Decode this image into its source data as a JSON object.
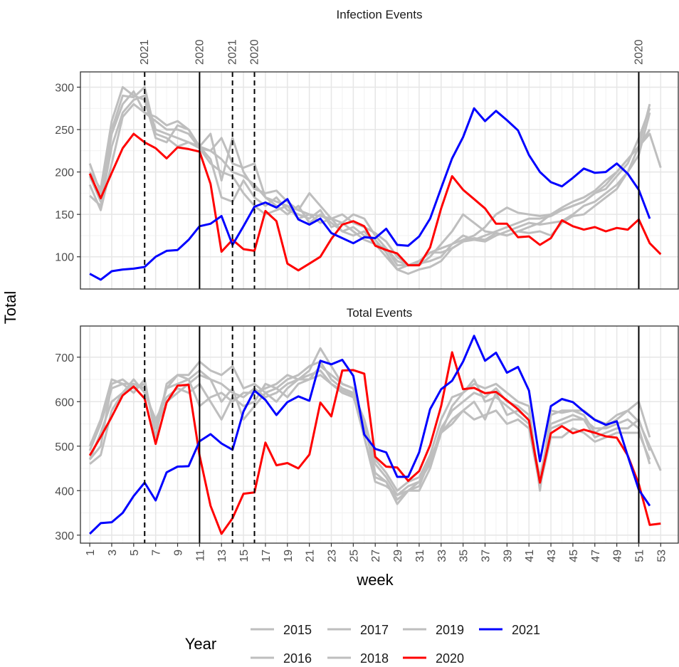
{
  "y_label": "Total",
  "x_label": "week",
  "legend_title": "Year",
  "xlim": [
    0.15,
    54.6
  ],
  "xticks": [
    1,
    3,
    5,
    7,
    9,
    11,
    13,
    15,
    17,
    19,
    21,
    23,
    25,
    27,
    29,
    31,
    33,
    35,
    37,
    39,
    41,
    43,
    45,
    47,
    49,
    51,
    53
  ],
  "reference_lines": [
    {
      "x": 6,
      "label": "2021",
      "style": "dashed"
    },
    {
      "x": 11,
      "label": "2020",
      "style": "solid"
    },
    {
      "x": 14,
      "label": "2021",
      "style": "dashed"
    },
    {
      "x": 16,
      "label": "2020",
      "style": "dashed"
    },
    {
      "x": 51,
      "label": "2020",
      "style": "solid"
    }
  ],
  "chart_data": [
    {
      "type": "line",
      "title": "Infection Events",
      "x": [
        1,
        2,
        3,
        4,
        5,
        6,
        7,
        8,
        9,
        10,
        11,
        12,
        13,
        14,
        15,
        16,
        17,
        18,
        19,
        20,
        21,
        22,
        23,
        24,
        25,
        26,
        27,
        28,
        29,
        30,
        31,
        32,
        33,
        34,
        35,
        36,
        37,
        38,
        39,
        40,
        41,
        42,
        43,
        44,
        45,
        46,
        47,
        48,
        49,
        50,
        51,
        52,
        53
      ],
      "ylim": [
        62,
        318
      ],
      "yticks": [
        100,
        150,
        200,
        250,
        300
      ],
      "series": [
        {
          "name": "2015",
          "color": "#bebebe",
          "values": [
            172,
            160,
            230,
            270,
            285,
            290,
            250,
            245,
            240,
            235,
            230,
            225,
            215,
            200,
            195,
            185,
            170,
            165,
            160,
            155,
            150,
            148,
            145,
            140,
            150,
            145,
            125,
            110,
            95,
            90,
            90,
            100,
            115,
            130,
            150,
            140,
            130,
            128,
            125,
            130,
            135,
            140,
            150,
            155,
            160,
            165,
            175,
            185,
            200,
            215,
            230,
            245,
            205
          ]
        },
        {
          "name": "2016",
          "color": "#bebebe",
          "values": [
            185,
            155,
            210,
            265,
            280,
            270,
            265,
            255,
            260,
            250,
            230,
            245,
            190,
            240,
            200,
            180,
            175,
            178,
            165,
            155,
            175,
            160,
            145,
            150,
            140,
            135,
            128,
            118,
            100,
            90,
            95,
            105,
            110,
            115,
            120,
            125,
            135,
            150,
            158,
            152,
            150,
            148,
            150,
            158,
            165,
            170,
            178,
            190,
            200,
            215,
            230,
            280,
            null
          ]
        },
        {
          "name": "2017",
          "color": "#bebebe",
          "values": [
            210,
            175,
            250,
            290,
            288,
            300,
            245,
            240,
            230,
            235,
            228,
            225,
            240,
            210,
            205,
            210,
            170,
            160,
            150,
            160,
            140,
            150,
            140,
            130,
            135,
            125,
            120,
            105,
            85,
            80,
            85,
            88,
            95,
            110,
            118,
            120,
            125,
            130,
            135,
            140,
            145,
            145,
            148,
            155,
            160,
            165,
            175,
            180,
            195,
            210,
            240,
            275,
            null
          ]
        },
        {
          "name": "2018",
          "color": "#bebebe",
          "values": [
            200,
            180,
            260,
            300,
            290,
            285,
            240,
            235,
            255,
            250,
            230,
            215,
            170,
            165,
            190,
            170,
            160,
            170,
            155,
            150,
            145,
            155,
            135,
            140,
            130,
            120,
            115,
            100,
            85,
            90,
            92,
            95,
            100,
            115,
            125,
            120,
            118,
            125,
            130,
            135,
            140,
            138,
            140,
            142,
            150,
            160,
            165,
            175,
            185,
            200,
            220,
            270,
            null
          ]
        },
        {
          "name": "2019",
          "color": "#bebebe",
          "values": [
            195,
            165,
            245,
            280,
            295,
            270,
            260,
            250,
            250,
            245,
            228,
            210,
            200,
            195,
            175,
            160,
            150,
            155,
            160,
            145,
            150,
            140,
            145,
            130,
            125,
            130,
            115,
            110,
            90,
            90,
            95,
            105,
            105,
            110,
            118,
            122,
            120,
            128,
            125,
            130,
            128,
            130,
            125,
            140,
            148,
            150,
            160,
            170,
            180,
            200,
            230,
            250,
            null
          ]
        },
        {
          "name": "2020",
          "color": "#ff0000",
          "values": [
            198,
            169,
            199,
            228,
            245,
            235,
            228,
            216,
            229,
            227,
            224,
            186,
            106,
            120,
            109,
            107,
            154,
            142,
            92,
            84,
            92,
            100,
            121,
            138,
            142,
            136,
            113,
            108,
            104,
            90,
            90,
            111,
            157,
            195,
            179,
            168,
            157,
            139,
            139,
            123,
            124,
            114,
            122,
            143,
            136,
            132,
            135,
            130,
            134,
            132,
            144,
            116,
            103
          ]
        },
        {
          "name": "2021",
          "color": "#0000ff",
          "values": [
            80,
            73,
            83,
            85,
            86,
            88,
            100,
            107,
            108,
            120,
            136,
            139,
            148,
            114,
            136,
            159,
            164,
            158,
            168,
            144,
            138,
            145,
            128,
            122,
            116,
            123,
            122,
            133,
            114,
            113,
            124,
            145,
            181,
            216,
            241,
            275,
            260,
            272,
            261,
            249,
            220,
            200,
            188,
            183,
            193,
            204,
            199,
            200,
            210,
            198,
            179,
            145,
            null
          ]
        }
      ]
    },
    {
      "type": "line",
      "title": "Total Events",
      "x": [
        1,
        2,
        3,
        4,
        5,
        6,
        7,
        8,
        9,
        10,
        11,
        12,
        13,
        14,
        15,
        16,
        17,
        18,
        19,
        20,
        21,
        22,
        23,
        24,
        25,
        26,
        27,
        28,
        29,
        30,
        31,
        32,
        33,
        34,
        35,
        36,
        37,
        38,
        39,
        40,
        41,
        42,
        43,
        44,
        45,
        46,
        47,
        48,
        49,
        50,
        51,
        52,
        53
      ],
      "ylim": [
        282,
        770
      ],
      "yticks": [
        300,
        400,
        500,
        600,
        700
      ],
      "series": [
        {
          "color": "#bebebe",
          "values": [
            470,
            500,
            640,
            650,
            630,
            640,
            540,
            600,
            620,
            640,
            660,
            650,
            600,
            630,
            560,
            590,
            620,
            630,
            610,
            640,
            650,
            660,
            640,
            625,
            615,
            520,
            430,
            420,
            380,
            400,
            420,
            460,
            540,
            580,
            600,
            620,
            610,
            630,
            600,
            590,
            570,
            410,
            570,
            580,
            580,
            570,
            530,
            545,
            560,
            580,
            555,
            500,
            445
          ]
        },
        {
          "color": "#bebebe",
          "values": [
            500,
            560,
            650,
            640,
            620,
            650,
            520,
            640,
            660,
            660,
            690,
            670,
            660,
            680,
            630,
            640,
            620,
            600,
            630,
            650,
            670,
            720,
            680,
            640,
            630,
            550,
            440,
            420,
            370,
            400,
            410,
            470,
            530,
            590,
            620,
            640,
            630,
            640,
            620,
            600,
            590,
            400,
            580,
            575,
            580,
            580,
            560,
            550,
            570,
            580,
            600,
            520,
            null
          ]
        },
        {
          "color": "#bebebe",
          "values": [
            460,
            480,
            580,
            620,
            650,
            620,
            560,
            610,
            630,
            620,
            640,
            600,
            560,
            610,
            590,
            600,
            640,
            630,
            650,
            660,
            680,
            690,
            650,
            630,
            620,
            560,
            470,
            440,
            400,
            420,
            430,
            480,
            560,
            610,
            620,
            650,
            600,
            610,
            590,
            570,
            550,
            430,
            550,
            560,
            570,
            560,
            540,
            540,
            550,
            560,
            540,
            460,
            null
          ]
        },
        {
          "color": "#bebebe",
          "values": [
            490,
            550,
            630,
            640,
            640,
            630,
            550,
            630,
            660,
            650,
            670,
            650,
            640,
            620,
            610,
            630,
            610,
            620,
            640,
            650,
            650,
            680,
            660,
            640,
            630,
            520,
            420,
            410,
            390,
            400,
            400,
            450,
            530,
            560,
            580,
            600,
            560,
            620,
            570,
            580,
            560,
            420,
            540,
            550,
            560,
            560,
            520,
            530,
            540,
            540,
            560,
            490,
            null
          ]
        },
        {
          "color": "#bebebe",
          "values": [
            470,
            530,
            600,
            620,
            640,
            630,
            545,
            630,
            640,
            650,
            590,
            610,
            620,
            600,
            620,
            620,
            630,
            640,
            660,
            650,
            660,
            670,
            640,
            620,
            610,
            540,
            460,
            430,
            390,
            410,
            420,
            470,
            530,
            550,
            580,
            560,
            570,
            580,
            550,
            560,
            540,
            410,
            520,
            520,
            540,
            530,
            510,
            520,
            530,
            530,
            530,
            470,
            null
          ]
        },
        {
          "color": "#ff0000",
          "values": [
            479,
            521,
            566,
            614,
            634,
            607,
            505,
            598,
            636,
            638,
            479,
            366,
            303,
            338,
            393,
            396,
            508,
            457,
            462,
            450,
            481,
            598,
            567,
            670,
            671,
            663,
            476,
            454,
            452,
            422,
            444,
            502,
            590,
            711,
            628,
            631,
            619,
            622,
            603,
            583,
            558,
            418,
            529,
            545,
            529,
            537,
            530,
            522,
            519,
            479,
            415,
            323,
            326
          ]
        },
        {
          "color": "#0000ff",
          "values": [
            303,
            327,
            329,
            350,
            388,
            418,
            378,
            441,
            454,
            455,
            511,
            527,
            506,
            492,
            578,
            625,
            604,
            570,
            599,
            612,
            602,
            692,
            684,
            694,
            658,
            526,
            494,
            486,
            431,
            431,
            486,
            583,
            628,
            647,
            690,
            748,
            692,
            710,
            665,
            678,
            625,
            466,
            590,
            606,
            599,
            578,
            559,
            548,
            556,
            478,
            402,
            366,
            null
          ]
        }
      ]
    }
  ]
}
